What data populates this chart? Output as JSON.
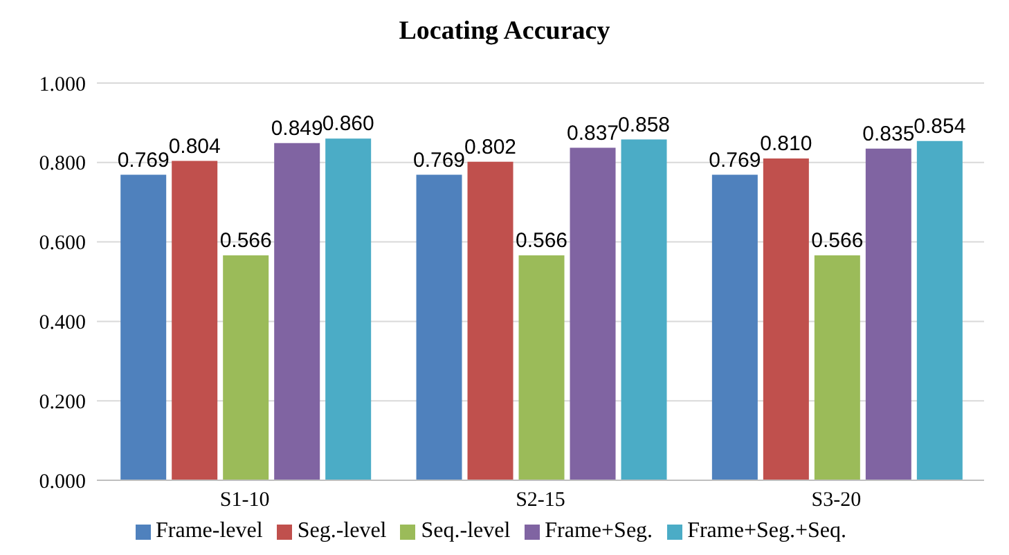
{
  "chart_data": {
    "type": "bar",
    "title": "Locating Accuracy",
    "categories": [
      "S1-10",
      "S2-15",
      "S3-20"
    ],
    "series": [
      {
        "name": "Frame-level",
        "color": "#4f81bd",
        "values": [
          0.769,
          0.769,
          0.769
        ],
        "value_labels": [
          "0.769",
          "0.769",
          "0.769"
        ]
      },
      {
        "name": "Seg.-level",
        "color": "#c0504d",
        "values": [
          0.804,
          0.802,
          0.81
        ],
        "value_labels": [
          "0.804",
          "0.802",
          "0.810"
        ]
      },
      {
        "name": "Seq.-level",
        "color": "#9bbb59",
        "values": [
          0.566,
          0.566,
          0.566
        ],
        "value_labels": [
          "0.566",
          "0.566",
          "0.566"
        ]
      },
      {
        "name": "Frame+Seg.",
        "color": "#8064a2",
        "values": [
          0.849,
          0.837,
          0.835
        ],
        "value_labels": [
          "0.849",
          "0.837",
          "0.835"
        ]
      },
      {
        "name": "Frame+Seg.+Seq.",
        "color": "#4bacc6",
        "values": [
          0.86,
          0.858,
          0.854
        ],
        "value_labels": [
          "0.860",
          "0.858",
          "0.854"
        ]
      }
    ],
    "ylim": [
      0,
      1
    ],
    "yticks": [
      {
        "value": 0,
        "label": "0.000"
      },
      {
        "value": 0.2,
        "label": "0.200"
      },
      {
        "value": 0.4,
        "label": "0.400"
      },
      {
        "value": 0.6,
        "label": "0.600"
      },
      {
        "value": 0.8,
        "label": "0.800"
      },
      {
        "value": 1,
        "label": "1.000"
      }
    ],
    "grid": "y",
    "legend": "bottom"
  }
}
